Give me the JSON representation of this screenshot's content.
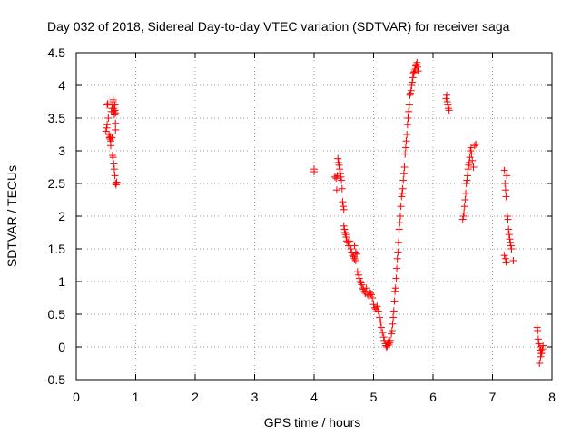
{
  "chart_data": {
    "type": "scatter",
    "title": "Day 032 of 2018, Sidereal Day-to-day VTEC variation (SDTVAR) for receiver saga",
    "xlabel": "GPS time / hours",
    "ylabel": "SDTVAR / TECUs",
    "xlim": [
      0,
      8
    ],
    "ylim": [
      -0.5,
      4.5
    ],
    "xticks": [
      0,
      1,
      2,
      3,
      4,
      5,
      6,
      7,
      8
    ],
    "yticks": [
      -0.5,
      0,
      0.5,
      1,
      1.5,
      2,
      2.5,
      3,
      3.5,
      4,
      4.5
    ],
    "grid": true,
    "marker": "+",
    "series_color": "#ff0000",
    "series": [
      {
        "name": "SDTVAR",
        "points": [
          [
            0.5,
            3.3
          ],
          [
            0.51,
            3.35
          ],
          [
            0.52,
            3.4
          ],
          [
            0.52,
            3.7
          ],
          [
            0.53,
            3.72
          ],
          [
            0.54,
            3.5
          ],
          [
            0.55,
            3.25
          ],
          [
            0.56,
            3.2
          ],
          [
            0.57,
            3.18
          ],
          [
            0.57,
            3.22
          ],
          [
            0.58,
            3.15
          ],
          [
            0.58,
            3.08
          ],
          [
            0.59,
            3.6
          ],
          [
            0.6,
            3.65
          ],
          [
            0.6,
            3.2
          ],
          [
            0.61,
            3.7
          ],
          [
            0.62,
            3.75
          ],
          [
            0.62,
            3.78
          ],
          [
            0.63,
            3.65
          ],
          [
            0.63,
            3.6
          ],
          [
            0.64,
            3.55
          ],
          [
            0.65,
            3.7
          ],
          [
            0.65,
            3.62
          ],
          [
            0.66,
            3.58
          ],
          [
            0.66,
            3.42
          ],
          [
            0.66,
            3.32
          ],
          [
            0.61,
            2.93
          ],
          [
            0.62,
            2.9
          ],
          [
            0.63,
            2.8
          ],
          [
            0.64,
            2.72
          ],
          [
            0.65,
            2.62
          ],
          [
            0.66,
            2.5
          ],
          [
            0.67,
            2.48
          ],
          [
            0.68,
            2.52
          ],
          [
            4.0,
            2.72
          ],
          [
            4.0,
            2.68
          ],
          [
            4.35,
            2.6
          ],
          [
            4.37,
            2.58
          ],
          [
            4.38,
            2.4
          ],
          [
            4.39,
            2.62
          ],
          [
            4.4,
            2.88
          ],
          [
            4.41,
            2.82
          ],
          [
            4.42,
            2.78
          ],
          [
            4.43,
            2.72
          ],
          [
            4.44,
            2.65
          ],
          [
            4.45,
            2.6
          ],
          [
            4.46,
            2.55
          ],
          [
            4.47,
            2.42
          ],
          [
            4.48,
            2.22
          ],
          [
            4.49,
            2.15
          ],
          [
            4.5,
            2.1
          ],
          [
            4.5,
            1.85
          ],
          [
            4.51,
            1.8
          ],
          [
            4.52,
            1.75
          ],
          [
            4.53,
            1.72
          ],
          [
            4.54,
            1.68
          ],
          [
            4.55,
            1.62
          ],
          [
            4.57,
            1.6
          ],
          [
            4.58,
            1.55
          ],
          [
            4.6,
            1.62
          ],
          [
            4.62,
            1.5
          ],
          [
            4.63,
            1.45
          ],
          [
            4.65,
            1.4
          ],
          [
            4.66,
            1.38
          ],
          [
            4.68,
            1.35
          ],
          [
            4.7,
            1.32
          ],
          [
            4.68,
            1.55
          ],
          [
            4.7,
            1.45
          ],
          [
            4.72,
            1.42
          ],
          [
            4.73,
            1.15
          ],
          [
            4.75,
            1.1
          ],
          [
            4.76,
            1.05
          ],
          [
            4.78,
            1.0
          ],
          [
            4.79,
            0.98
          ],
          [
            4.8,
            0.95
          ],
          [
            4.82,
            0.9
          ],
          [
            4.83,
            0.88
          ],
          [
            4.85,
            0.85
          ],
          [
            4.86,
            0.82
          ],
          [
            4.88,
            0.9
          ],
          [
            4.9,
            0.8
          ],
          [
            4.92,
            0.78
          ],
          [
            4.93,
            0.85
          ],
          [
            4.95,
            0.82
          ],
          [
            4.96,
            0.8
          ],
          [
            4.98,
            0.75
          ],
          [
            5.0,
            0.65
          ],
          [
            5.02,
            0.6
          ],
          [
            5.04,
            0.58
          ],
          [
            5.06,
            0.62
          ],
          [
            5.08,
            0.55
          ],
          [
            5.1,
            0.45
          ],
          [
            5.12,
            0.38
          ],
          [
            5.13,
            0.3
          ],
          [
            5.15,
            0.22
          ],
          [
            5.17,
            0.15
          ],
          [
            5.18,
            0.1
          ],
          [
            5.2,
            0.05
          ],
          [
            5.21,
            0.02
          ],
          [
            5.22,
            0.0
          ],
          [
            5.23,
            0.02
          ],
          [
            5.24,
            0.05
          ],
          [
            5.25,
            0.08
          ],
          [
            5.26,
            0.03
          ],
          [
            5.27,
            0.06
          ],
          [
            5.28,
            0.1
          ],
          [
            5.3,
            0.2
          ],
          [
            5.31,
            0.25
          ],
          [
            5.32,
            0.35
          ],
          [
            5.33,
            0.45
          ],
          [
            5.34,
            0.55
          ],
          [
            5.35,
            0.7
          ],
          [
            5.36,
            0.85
          ],
          [
            5.37,
            0.9
          ],
          [
            5.38,
            1.05
          ],
          [
            5.39,
            1.2
          ],
          [
            5.4,
            1.35
          ],
          [
            5.41,
            1.45
          ],
          [
            5.42,
            1.6
          ],
          [
            5.43,
            1.8
          ],
          [
            5.44,
            1.9
          ],
          [
            5.45,
            2.0
          ],
          [
            5.46,
            2.15
          ],
          [
            5.47,
            2.3
          ],
          [
            5.48,
            2.35
          ],
          [
            5.49,
            2.42
          ],
          [
            5.5,
            2.55
          ],
          [
            5.51,
            2.65
          ],
          [
            5.52,
            2.75
          ],
          [
            5.53,
            2.95
          ],
          [
            5.54,
            3.05
          ],
          [
            5.55,
            3.15
          ],
          [
            5.56,
            3.25
          ],
          [
            5.57,
            3.4
          ],
          [
            5.58,
            3.5
          ],
          [
            5.59,
            3.6
          ],
          [
            5.6,
            3.7
          ],
          [
            5.61,
            3.85
          ],
          [
            5.62,
            3.88
          ],
          [
            5.63,
            3.92
          ],
          [
            5.64,
            4.0
          ],
          [
            5.65,
            4.05
          ],
          [
            5.66,
            4.12
          ],
          [
            5.67,
            4.18
          ],
          [
            5.68,
            4.2
          ],
          [
            5.69,
            4.22
          ],
          [
            5.7,
            4.25
          ],
          [
            5.71,
            4.3
          ],
          [
            5.72,
            4.32
          ],
          [
            5.73,
            4.35
          ],
          [
            5.74,
            4.28
          ],
          [
            5.75,
            4.22
          ],
          [
            6.22,
            3.8
          ],
          [
            6.23,
            3.85
          ],
          [
            6.24,
            3.75
          ],
          [
            6.25,
            3.7
          ],
          [
            6.26,
            3.65
          ],
          [
            6.27,
            3.62
          ],
          [
            6.5,
            1.95
          ],
          [
            6.51,
            2.0
          ],
          [
            6.52,
            2.05
          ],
          [
            6.53,
            2.15
          ],
          [
            6.54,
            2.25
          ],
          [
            6.55,
            2.35
          ],
          [
            6.56,
            2.5
          ],
          [
            6.57,
            2.55
          ],
          [
            6.58,
            2.62
          ],
          [
            6.59,
            2.72
          ],
          [
            6.6,
            2.78
          ],
          [
            6.61,
            2.82
          ],
          [
            6.62,
            2.9
          ],
          [
            6.63,
            3.0
          ],
          [
            6.64,
            3.05
          ],
          [
            6.65,
            2.95
          ],
          [
            6.66,
            2.85
          ],
          [
            6.68,
            2.75
          ],
          [
            6.7,
            3.08
          ],
          [
            6.72,
            3.1
          ],
          [
            7.2,
            2.7
          ],
          [
            7.21,
            2.5
          ],
          [
            7.22,
            2.4
          ],
          [
            7.23,
            2.3
          ],
          [
            7.24,
            2.62
          ],
          [
            7.25,
            2.0
          ],
          [
            7.26,
            1.95
          ],
          [
            7.27,
            1.8
          ],
          [
            7.28,
            1.72
          ],
          [
            7.29,
            1.65
          ],
          [
            7.3,
            1.6
          ],
          [
            7.31,
            1.55
          ],
          [
            7.32,
            1.5
          ],
          [
            7.2,
            1.4
          ],
          [
            7.22,
            1.35
          ],
          [
            7.35,
            1.32
          ],
          [
            7.23,
            1.3
          ],
          [
            7.75,
            0.3
          ],
          [
            7.76,
            0.25
          ],
          [
            7.77,
            0.12
          ],
          [
            7.78,
            0.05
          ],
          [
            7.8,
            0.0
          ],
          [
            7.81,
            -0.05
          ],
          [
            7.82,
            -0.1
          ],
          [
            7.83,
            -0.08
          ],
          [
            7.84,
            -0.03
          ],
          [
            7.85,
            0.02
          ],
          [
            7.79,
            -0.25
          ],
          [
            7.81,
            -0.15
          ]
        ]
      }
    ]
  }
}
